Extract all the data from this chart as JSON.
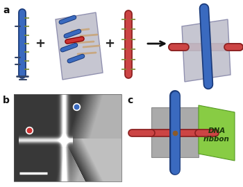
{
  "bg_color": "#ffffff",
  "label_a": "a",
  "label_b": "b",
  "label_c": "c",
  "blue_tube_color": "#3a6abf",
  "blue_tube_dark": "#1a3a7a",
  "red_tube_color": "#cc4444",
  "red_tube_dark": "#8b2020",
  "dna_olive": "#7a8a30",
  "dna_blue": "#3a6abf",
  "dna_red": "#cc3333",
  "dna_tan": "#c8a882",
  "ribbon_green": "#88cc44",
  "ribbon_green_dark": "#559922",
  "ribbon_green_light": "#aade66",
  "gray_sheet": "#c0c0cc",
  "gray_sheet_dark": "#8888aa",
  "gray_block": "#aaaaaa",
  "gray_block_dark": "#888888",
  "plus_color": "#222222",
  "arrow_color": "#111111",
  "scale_bar_color": "#ffffff",
  "dot_blue": "#3a6abf",
  "dot_red": "#cc3333",
  "panel_b_bg": "#404040",
  "sem_bright": "#e8e8e8"
}
